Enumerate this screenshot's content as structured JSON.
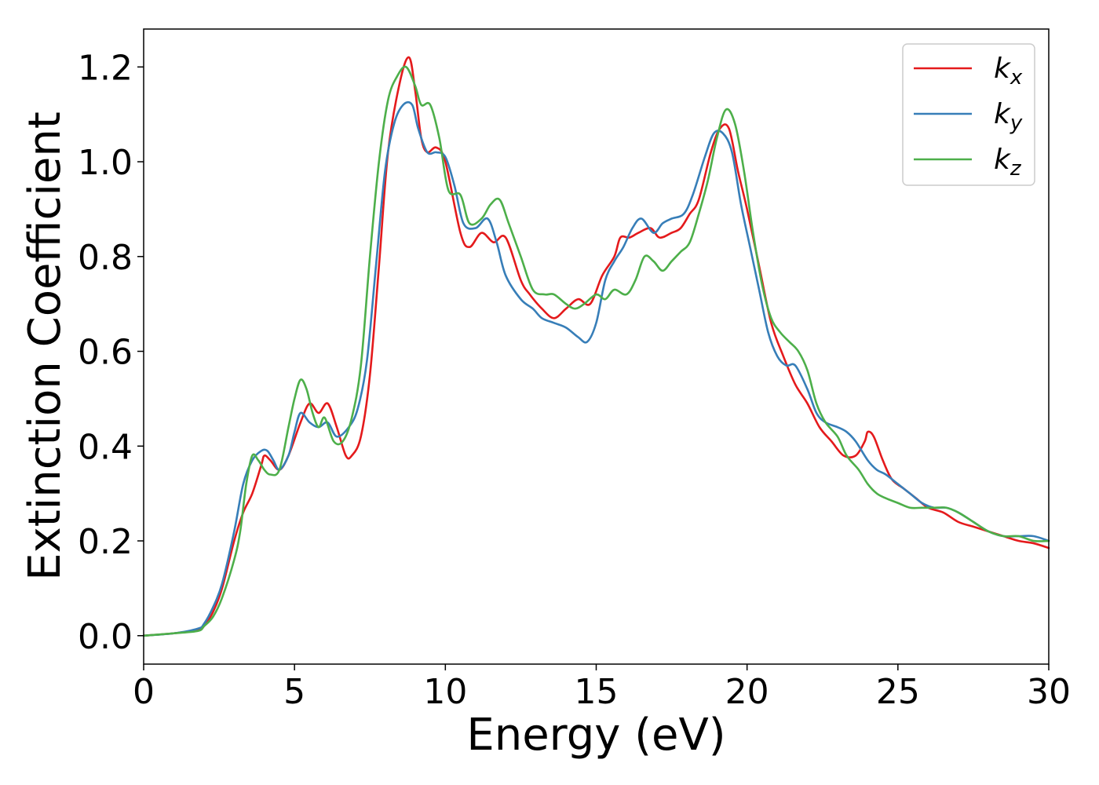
{
  "chart_data": {
    "type": "line",
    "title": "",
    "xlabel": "Energy (eV)",
    "ylabel": "Extinction Coefficient",
    "xlim": [
      0,
      30
    ],
    "ylim": [
      -0.06,
      1.28
    ],
    "xticks": [
      0,
      5,
      10,
      15,
      20,
      25,
      30
    ],
    "yticks": [
      0.0,
      0.2,
      0.4,
      0.6,
      0.8,
      1.0,
      1.2
    ],
    "xtick_labels": [
      "0",
      "5",
      "10",
      "15",
      "20",
      "25",
      "30"
    ],
    "ytick_labels": [
      "0.0",
      "0.2",
      "0.4",
      "0.6",
      "0.8",
      "1.0",
      "1.2"
    ],
    "grid": false,
    "legend_position": "top-right",
    "series": [
      {
        "name": "kx",
        "label_base": "k",
        "label_sub": "x",
        "color": "#e41a1c",
        "x": [
          0,
          1,
          1.8,
          2.0,
          2.3,
          2.6,
          3.0,
          3.3,
          3.6,
          3.9,
          4.0,
          4.2,
          4.5,
          4.8,
          5.2,
          5.5,
          5.8,
          6.1,
          6.4,
          6.7,
          6.9,
          7.2,
          7.5,
          7.8,
          8.1,
          8.5,
          8.8,
          9.0,
          9.2,
          9.4,
          9.7,
          10.0,
          10.5,
          10.8,
          11.2,
          11.6,
          12.0,
          12.5,
          12.8,
          13.2,
          13.6,
          14.0,
          14.4,
          14.8,
          15.2,
          15.6,
          15.8,
          16.1,
          16.4,
          16.8,
          17.1,
          17.5,
          17.8,
          18.1,
          18.4,
          18.8,
          19.1,
          19.4,
          19.7,
          20.0,
          20.4,
          20.8,
          21.2,
          21.6,
          22.0,
          22.4,
          22.8,
          23.2,
          23.6,
          23.9,
          24.0,
          24.2,
          24.5,
          24.8,
          25.2,
          25.6,
          26.0,
          26.5,
          27.0,
          27.5,
          28.0,
          28.5,
          29.0,
          29.5,
          30.0
        ],
        "y": [
          0.0,
          0.005,
          0.012,
          0.02,
          0.05,
          0.1,
          0.2,
          0.26,
          0.3,
          0.36,
          0.38,
          0.37,
          0.35,
          0.38,
          0.45,
          0.49,
          0.47,
          0.49,
          0.44,
          0.38,
          0.38,
          0.42,
          0.55,
          0.78,
          1.02,
          1.17,
          1.22,
          1.15,
          1.05,
          1.02,
          1.03,
          1.0,
          0.85,
          0.82,
          0.85,
          0.83,
          0.84,
          0.75,
          0.72,
          0.69,
          0.67,
          0.69,
          0.71,
          0.7,
          0.76,
          0.8,
          0.84,
          0.84,
          0.85,
          0.86,
          0.84,
          0.85,
          0.86,
          0.89,
          0.92,
          1.02,
          1.07,
          1.07,
          0.98,
          0.9,
          0.78,
          0.66,
          0.59,
          0.53,
          0.49,
          0.44,
          0.41,
          0.38,
          0.38,
          0.41,
          0.43,
          0.42,
          0.37,
          0.33,
          0.31,
          0.29,
          0.27,
          0.26,
          0.24,
          0.23,
          0.22,
          0.21,
          0.2,
          0.195,
          0.185
        ]
      },
      {
        "name": "ky",
        "label_base": "k",
        "label_sub": "y",
        "color": "#377eb8",
        "x": [
          0,
          1,
          1.8,
          2.0,
          2.3,
          2.6,
          3.0,
          3.3,
          3.6,
          3.9,
          4.1,
          4.3,
          4.5,
          4.8,
          5.0,
          5.2,
          5.5,
          5.8,
          6.1,
          6.4,
          6.8,
          7.1,
          7.4,
          7.7,
          8.0,
          8.3,
          8.6,
          8.9,
          9.1,
          9.4,
          9.7,
          10.0,
          10.3,
          10.6,
          11.0,
          11.4,
          11.7,
          12.0,
          12.5,
          12.9,
          13.2,
          13.6,
          14.0,
          14.4,
          14.7,
          15.0,
          15.3,
          15.6,
          15.9,
          16.2,
          16.5,
          16.9,
          17.2,
          17.5,
          17.9,
          18.2,
          18.6,
          18.9,
          19.2,
          19.5,
          19.8,
          20.1,
          20.4,
          20.7,
          21.0,
          21.3,
          21.6,
          22.0,
          22.3,
          22.6,
          23.0,
          23.3,
          23.6,
          24.0,
          24.3,
          24.6,
          25.0,
          25.4,
          25.8,
          26.2,
          26.6,
          27.0,
          27.5,
          28.0,
          28.5,
          29.0,
          29.5,
          30.0
        ],
        "y": [
          0.0,
          0.005,
          0.015,
          0.025,
          0.06,
          0.11,
          0.22,
          0.32,
          0.37,
          0.39,
          0.39,
          0.37,
          0.35,
          0.38,
          0.43,
          0.47,
          0.45,
          0.44,
          0.45,
          0.42,
          0.44,
          0.48,
          0.58,
          0.78,
          0.98,
          1.08,
          1.12,
          1.12,
          1.07,
          1.02,
          1.02,
          1.01,
          0.95,
          0.87,
          0.86,
          0.88,
          0.83,
          0.76,
          0.71,
          0.69,
          0.67,
          0.66,
          0.65,
          0.63,
          0.62,
          0.66,
          0.75,
          0.79,
          0.82,
          0.86,
          0.88,
          0.85,
          0.87,
          0.88,
          0.89,
          0.93,
          1.01,
          1.06,
          1.06,
          1.02,
          0.91,
          0.82,
          0.73,
          0.64,
          0.59,
          0.57,
          0.57,
          0.52,
          0.47,
          0.45,
          0.44,
          0.43,
          0.41,
          0.37,
          0.35,
          0.34,
          0.32,
          0.3,
          0.28,
          0.27,
          0.27,
          0.26,
          0.24,
          0.22,
          0.21,
          0.21,
          0.21,
          0.2
        ]
      },
      {
        "name": "kz",
        "label_base": "k",
        "label_sub": "z",
        "color": "#4daf4a",
        "x": [
          0,
          1,
          1.8,
          2.0,
          2.3,
          2.6,
          3.0,
          3.2,
          3.4,
          3.6,
          3.8,
          4.0,
          4.2,
          4.5,
          4.8,
          5.0,
          5.2,
          5.4,
          5.6,
          5.8,
          6.0,
          6.3,
          6.6,
          6.9,
          7.2,
          7.5,
          7.8,
          8.1,
          8.4,
          8.7,
          9.0,
          9.2,
          9.5,
          9.8,
          10.1,
          10.5,
          10.8,
          11.2,
          11.5,
          11.8,
          12.1,
          12.5,
          12.9,
          13.3,
          13.6,
          14.0,
          14.3,
          14.6,
          15.0,
          15.3,
          15.6,
          16.0,
          16.3,
          16.6,
          16.9,
          17.2,
          17.5,
          17.8,
          18.1,
          18.4,
          18.7,
          19.0,
          19.3,
          19.6,
          19.9,
          20.2,
          20.5,
          20.8,
          21.1,
          21.4,
          21.7,
          22.0,
          22.3,
          22.6,
          23.0,
          23.3,
          23.7,
          24.0,
          24.3,
          24.6,
          25.0,
          25.4,
          25.8,
          26.2,
          26.6,
          27.0,
          27.5,
          28.0,
          28.5,
          29.0,
          29.5,
          30.0
        ],
        "y": [
          0.0,
          0.005,
          0.01,
          0.02,
          0.04,
          0.08,
          0.16,
          0.22,
          0.32,
          0.38,
          0.37,
          0.35,
          0.34,
          0.35,
          0.44,
          0.5,
          0.54,
          0.52,
          0.47,
          0.44,
          0.46,
          0.41,
          0.41,
          0.46,
          0.57,
          0.8,
          1.0,
          1.13,
          1.18,
          1.2,
          1.16,
          1.12,
          1.12,
          1.05,
          0.94,
          0.93,
          0.87,
          0.88,
          0.91,
          0.92,
          0.87,
          0.8,
          0.73,
          0.72,
          0.72,
          0.7,
          0.69,
          0.7,
          0.72,
          0.71,
          0.73,
          0.72,
          0.75,
          0.8,
          0.79,
          0.77,
          0.79,
          0.81,
          0.83,
          0.89,
          0.96,
          1.05,
          1.11,
          1.08,
          0.98,
          0.85,
          0.74,
          0.67,
          0.64,
          0.62,
          0.6,
          0.56,
          0.49,
          0.45,
          0.42,
          0.38,
          0.35,
          0.32,
          0.3,
          0.29,
          0.28,
          0.27,
          0.27,
          0.27,
          0.27,
          0.26,
          0.24,
          0.22,
          0.21,
          0.21,
          0.2,
          0.2
        ]
      }
    ]
  }
}
